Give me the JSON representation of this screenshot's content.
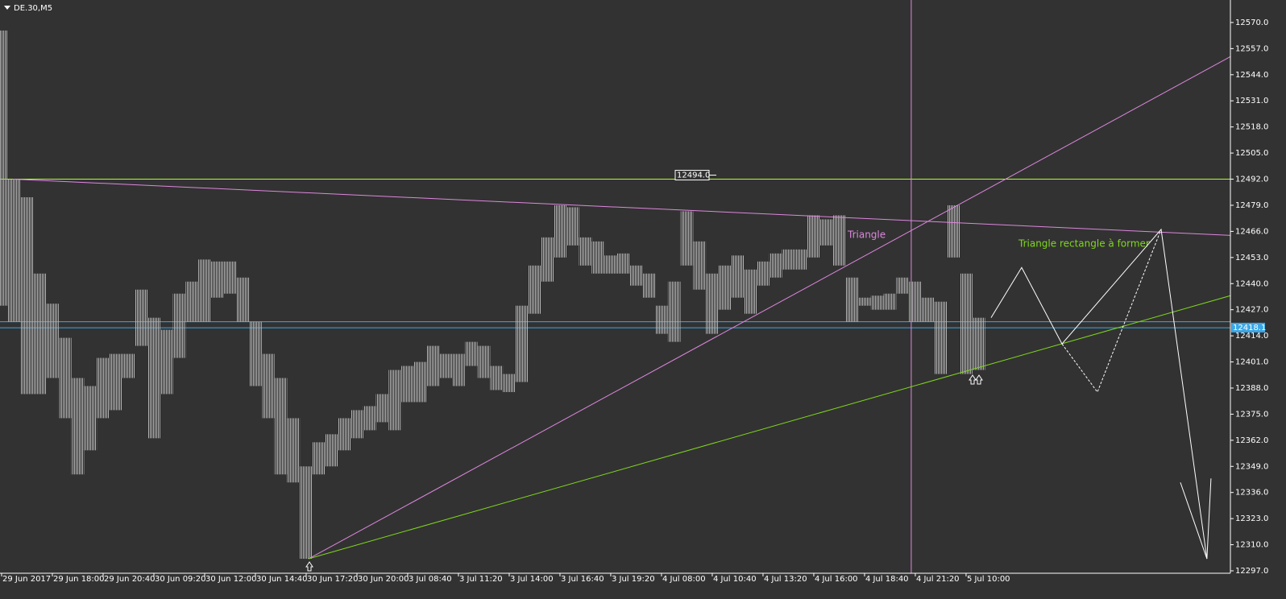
{
  "chart_data": {
    "type": "hilo",
    "title": "DE.30,M5",
    "xlim": [
      0,
      96.83
    ],
    "ylim": [
      12295.8,
      12581.2
    ],
    "xticks": [
      {
        "value": 0,
        "label": "29 Jun 2017"
      },
      {
        "value": 4,
        "label": "29 Jun 18:00"
      },
      {
        "value": 8,
        "label": "29 Jun 20:40"
      },
      {
        "value": 12,
        "label": "30 Jun 09:20"
      },
      {
        "value": 16,
        "label": "30 Jun 12:00"
      },
      {
        "value": 20,
        "label": "30 Jun 14:40"
      },
      {
        "value": 24,
        "label": "30 Jun 17:20"
      },
      {
        "value": 28,
        "label": "30 Jun 20:00"
      },
      {
        "value": 32,
        "label": "3 Jul 08:40"
      },
      {
        "value": 36,
        "label": "3 Jul 11:20"
      },
      {
        "value": 40,
        "label": "3 Jul 14:00"
      },
      {
        "value": 44,
        "label": "3 Jul 16:40"
      },
      {
        "value": 48,
        "label": "3 Jul 19:20"
      },
      {
        "value": 52,
        "label": "4 Jul 08:00"
      },
      {
        "value": 56,
        "label": "4 Jul 10:40"
      },
      {
        "value": 60,
        "label": "4 Jul 13:20"
      },
      {
        "value": 64,
        "label": "4 Jul 16:00"
      },
      {
        "value": 68,
        "label": "4 Jul 18:40"
      },
      {
        "value": 72,
        "label": "4 Jul 21:20"
      },
      {
        "value": 76,
        "label": "5 Jul 10:00"
      }
    ],
    "yticks": [
      {
        "value": 12297,
        "label": "12297.0"
      },
      {
        "value": 12310,
        "label": "12310.0"
      },
      {
        "value": 12323,
        "label": "12323.0"
      },
      {
        "value": 12336,
        "label": "12336.0"
      },
      {
        "value": 12349,
        "label": "12349.0"
      },
      {
        "value": 12362,
        "label": "12362.0"
      },
      {
        "value": 12375,
        "label": "12375.0"
      },
      {
        "value": 12388,
        "label": "12388.0"
      },
      {
        "value": 12401,
        "label": "12401.0"
      },
      {
        "value": 12414,
        "label": "12414.0"
      },
      {
        "value": 12427,
        "label": "12427.0"
      },
      {
        "value": 12440,
        "label": "12440.0"
      },
      {
        "value": 12453,
        "label": "12453.0"
      },
      {
        "value": 12466,
        "label": "12466.0"
      },
      {
        "value": 12479,
        "label": "12479.0"
      },
      {
        "value": 12492,
        "label": "12492.0"
      },
      {
        "value": 12505,
        "label": "12505.0"
      },
      {
        "value": 12518,
        "label": "12518.0"
      },
      {
        "value": 12531,
        "label": "12531.0"
      },
      {
        "value": 12544,
        "label": "12544.0"
      },
      {
        "value": 12557,
        "label": "12557.0"
      },
      {
        "value": 12570,
        "label": "12570.0"
      }
    ],
    "color": "#b4b4b4",
    "high": [
      12566,
      12492,
      12483,
      12445,
      12430,
      12413,
      12393,
      12389,
      12403,
      12405,
      12405,
      12437,
      12423,
      12417,
      12435,
      12441,
      12452,
      12451,
      12451,
      12443,
      12421,
      12405,
      12393,
      12373,
      12349,
      12361,
      12365,
      12373,
      12377,
      12379,
      12385,
      12397,
      12399,
      12401,
      12409,
      12405,
      12405,
      12411,
      12409,
      12399,
      12395,
      12429,
      12449,
      12463,
      12479,
      12478,
      12463,
      12461,
      12454,
      12455,
      12449,
      12445,
      12429,
      12441,
      12476,
      12461,
      12445,
      12449,
      12454,
      12447,
      12451,
      12455,
      12457,
      12457,
      12474,
      12472,
      12474,
      12443,
      12433,
      12434,
      12435,
      12443,
      12441,
      12433,
      12431,
      12479,
      12445,
      12423
    ],
    "low": [
      12429,
      12421,
      12385,
      12385,
      12393,
      12373,
      12345,
      12357,
      12373,
      12377,
      12393,
      12409,
      12363,
      12385,
      12403,
      12421,
      12421,
      12433,
      12435,
      12421,
      12389,
      12373,
      12345,
      12341,
      12303,
      12345,
      12349,
      12357,
      12363,
      12367,
      12371,
      12367,
      12381,
      12381,
      12389,
      12393,
      12389,
      12399,
      12393,
      12387,
      12386,
      12391,
      12425,
      12441,
      12453,
      12459,
      12449,
      12445,
      12445,
      12445,
      12439,
      12433,
      12415,
      12411,
      12449,
      12437,
      12415,
      12427,
      12433,
      12425,
      12439,
      12443,
      12447,
      12447,
      12453,
      12459,
      12449,
      12421,
      12429,
      12427,
      12427,
      12435,
      12421,
      12421,
      12395,
      12453,
      12395,
      12397
    ],
    "hlines": [
      {
        "value": 12492,
        "color": "#adff2f"
      },
      {
        "value": 12421,
        "color": "#3ba7e6"
      },
      {
        "value": 12418,
        "color": "#3ba7e6"
      }
    ],
    "vlines": [
      {
        "value": 71.68,
        "color": "#dd88dd"
      }
    ],
    "lines": [
      {
        "x": [
          0.89,
          96.83
        ],
        "y": [
          12492,
          12464
        ],
        "color": "#dd88dd",
        "dashed": false
      },
      {
        "x": [
          24.19,
          96.83
        ],
        "y": [
          12303,
          12553
        ],
        "color": "#dd88dd",
        "dashed": false
      },
      {
        "x": [
          24.19,
          96.83
        ],
        "y": [
          12303,
          12434
        ],
        "color": "#7fd81c",
        "dashed": false
      },
      {
        "x": [
          77.97,
          80.38,
          83.56,
          91.37,
          94.98
        ],
        "y": [
          12423,
          12448,
          12410,
          12467,
          12303
        ],
        "color": "#ffffff",
        "dashed": false
      },
      {
        "x": [
          92.89,
          94.98,
          95.3
        ],
        "y": [
          12341,
          12303,
          12343
        ],
        "color": "#ffffff",
        "dashed": false
      },
      {
        "x": [
          83.56,
          86.35,
          91.37
        ],
        "y": [
          12410,
          12386,
          12467
        ],
        "color": "#ffffff",
        "dashed": true
      }
    ],
    "current_price": 12418.1,
    "price_label": {
      "value": 12494,
      "label": "12494.0"
    },
    "annotations": [
      "Triangle",
      "Triangle rectangle à former"
    ]
  }
}
